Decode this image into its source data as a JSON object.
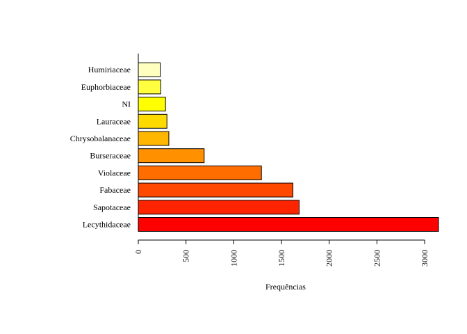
{
  "chart_data": {
    "type": "bar",
    "orientation": "horizontal",
    "title": "",
    "xlabel": "Frequências",
    "ylabel": "",
    "categories": [
      "Lecythidaceae",
      "Sapotaceae",
      "Fabaceae",
      "Violaceae",
      "Burseraceae",
      "Chrysobalanaceae",
      "Lauraceae",
      "NI",
      "Euphorbiaceae",
      "Humiriaceae"
    ],
    "values": [
      3145,
      1685,
      1620,
      1290,
      690,
      320,
      300,
      285,
      235,
      230
    ],
    "colors": [
      "#FF0000",
      "#FF2400",
      "#FF4800",
      "#FF6D00",
      "#FF9100",
      "#FFB600",
      "#FFDA00",
      "#FFFF00",
      "#FFFF40",
      "#FFFFBF"
    ],
    "xticks": [
      0,
      500,
      1000,
      1500,
      2000,
      2500,
      3000
    ],
    "xtick_labels": [
      "0",
      "500",
      "1000",
      "1500",
      "2000",
      "2500",
      "3000"
    ],
    "xlim": [
      0,
      3145
    ],
    "grid": false,
    "legend": "none"
  }
}
